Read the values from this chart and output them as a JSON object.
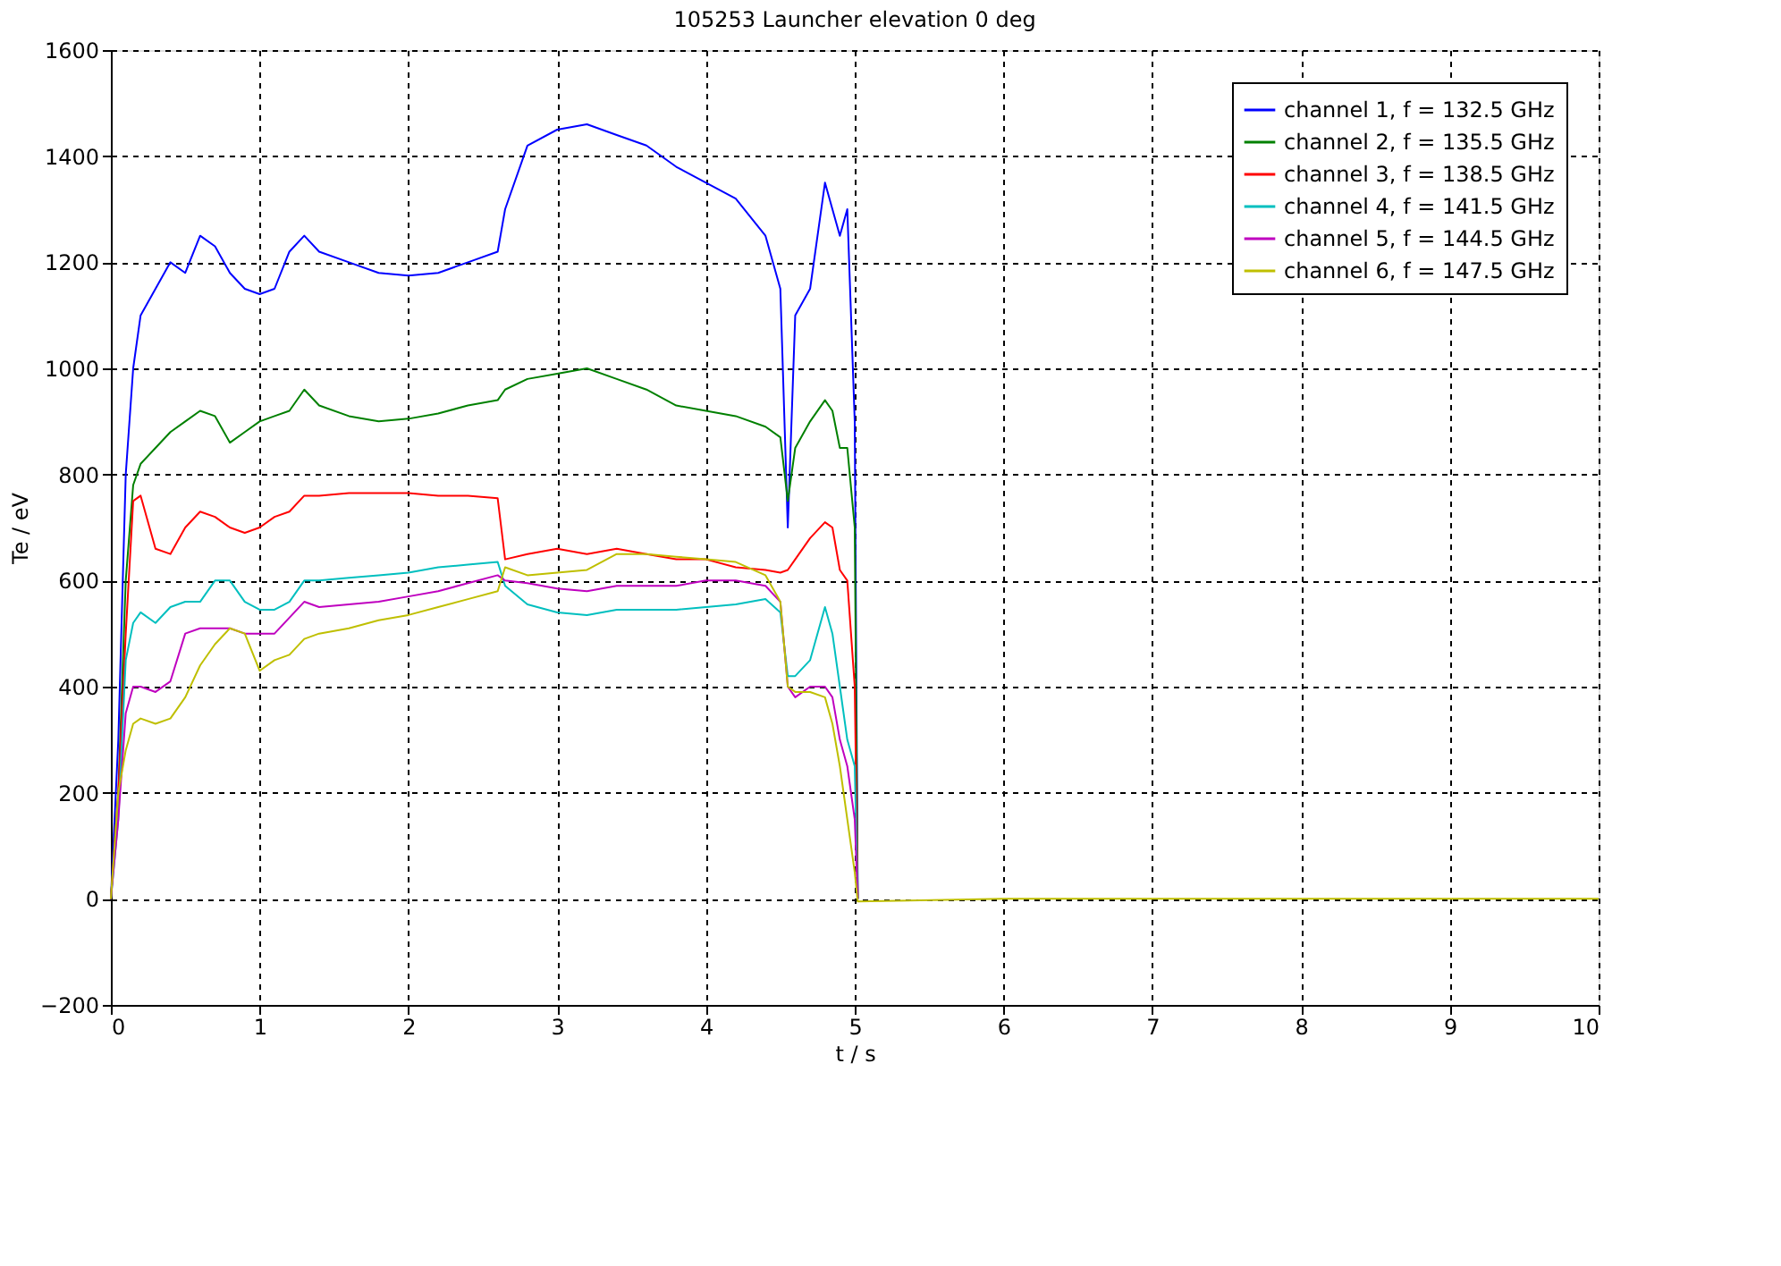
{
  "chart_data": {
    "type": "line",
    "title": "105253 Launcher elevation 0 deg",
    "xlabel": "t / s",
    "ylabel": "Te / eV",
    "x": [
      0,
      0.05,
      0.1,
      0.15,
      0.2,
      0.3,
      0.4,
      0.5,
      0.6,
      0.7,
      0.8,
      0.9,
      1.0,
      1.1,
      1.2,
      1.3,
      1.4,
      1.6,
      1.8,
      2.0,
      2.2,
      2.4,
      2.6,
      2.65,
      2.8,
      3.0,
      3.2,
      3.4,
      3.6,
      3.8,
      4.0,
      4.2,
      4.4,
      4.5,
      4.55,
      4.6,
      4.7,
      4.8,
      4.85,
      4.9,
      4.95,
      5.0,
      5.02,
      6,
      7,
      8,
      9,
      10
    ],
    "series": [
      {
        "name": "channel 1, f = 132.5 GHz",
        "color": "#0000ff",
        "values": [
          0,
          300,
          800,
          1000,
          1100,
          1150,
          1200,
          1180,
          1250,
          1230,
          1180,
          1150,
          1140,
          1150,
          1220,
          1250,
          1220,
          1200,
          1180,
          1175,
          1180,
          1200,
          1220,
          1300,
          1420,
          1450,
          1460,
          1440,
          1420,
          1380,
          1350,
          1320,
          1250,
          1150,
          700,
          1100,
          1150,
          1350,
          1300,
          1250,
          1300,
          900,
          0,
          null,
          null,
          null,
          null,
          null
        ]
      },
      {
        "name": "channel 2, f = 135.5 GHz",
        "color": "#008000",
        "values": [
          0,
          200,
          600,
          780,
          820,
          850,
          880,
          900,
          920,
          910,
          860,
          880,
          900,
          910,
          920,
          960,
          930,
          910,
          900,
          905,
          915,
          930,
          940,
          960,
          980,
          990,
          1000,
          980,
          960,
          930,
          920,
          910,
          890,
          870,
          750,
          850,
          900,
          940,
          920,
          850,
          850,
          700,
          0,
          null,
          null,
          null,
          null,
          null
        ]
      },
      {
        "name": "channel 3, f = 138.5 GHz",
        "color": "#ff0000",
        "values": [
          0,
          200,
          500,
          750,
          760,
          660,
          650,
          700,
          730,
          720,
          700,
          690,
          700,
          720,
          730,
          760,
          760,
          765,
          765,
          765,
          760,
          760,
          755,
          640,
          650,
          660,
          650,
          660,
          650,
          640,
          640,
          625,
          620,
          615,
          620,
          640,
          680,
          710,
          700,
          620,
          600,
          400,
          0,
          null,
          null,
          null,
          null,
          null
        ]
      },
      {
        "name": "channel 4, f = 141.5 GHz",
        "color": "#00bfbf",
        "values": [
          0,
          150,
          450,
          520,
          540,
          520,
          550,
          560,
          560,
          600,
          600,
          560,
          545,
          545,
          560,
          600,
          600,
          605,
          610,
          615,
          625,
          630,
          635,
          590,
          555,
          540,
          535,
          545,
          545,
          545,
          550,
          555,
          565,
          540,
          420,
          420,
          450,
          550,
          500,
          400,
          300,
          250,
          0,
          null,
          null,
          null,
          null,
          null
        ]
      },
      {
        "name": "channel 5, f = 144.5 GHz",
        "color": "#bf00bf",
        "values": [
          0,
          150,
          350,
          400,
          400,
          390,
          410,
          500,
          510,
          510,
          510,
          500,
          500,
          500,
          530,
          560,
          550,
          555,
          560,
          570,
          580,
          595,
          610,
          600,
          595,
          585,
          580,
          590,
          590,
          590,
          600,
          600,
          590,
          560,
          400,
          380,
          400,
          400,
          380,
          300,
          250,
          150,
          0,
          null,
          null,
          null,
          null,
          null
        ]
      },
      {
        "name": "channel 6, f = 147.5 GHz",
        "color": "#bfbf00",
        "values": [
          0,
          200,
          280,
          330,
          340,
          330,
          340,
          380,
          440,
          480,
          510,
          500,
          430,
          450,
          460,
          490,
          500,
          510,
          525,
          535,
          550,
          565,
          580,
          625,
          610,
          615,
          620,
          650,
          650,
          645,
          640,
          635,
          610,
          560,
          400,
          390,
          390,
          380,
          330,
          250,
          150,
          50,
          -5,
          0,
          0,
          0,
          0,
          0
        ]
      }
    ],
    "xlim": [
      0,
      10
    ],
    "xticks": [
      0,
      1,
      2,
      3,
      4,
      5,
      6,
      7,
      8,
      9,
      10
    ],
    "ylim": [
      -200,
      1600
    ],
    "yticks": [
      -200,
      0,
      200,
      400,
      600,
      800,
      1000,
      1200,
      1400,
      1600
    ],
    "grid": true,
    "legend": "top right",
    "marker": "none",
    "line_style": "solid"
  }
}
